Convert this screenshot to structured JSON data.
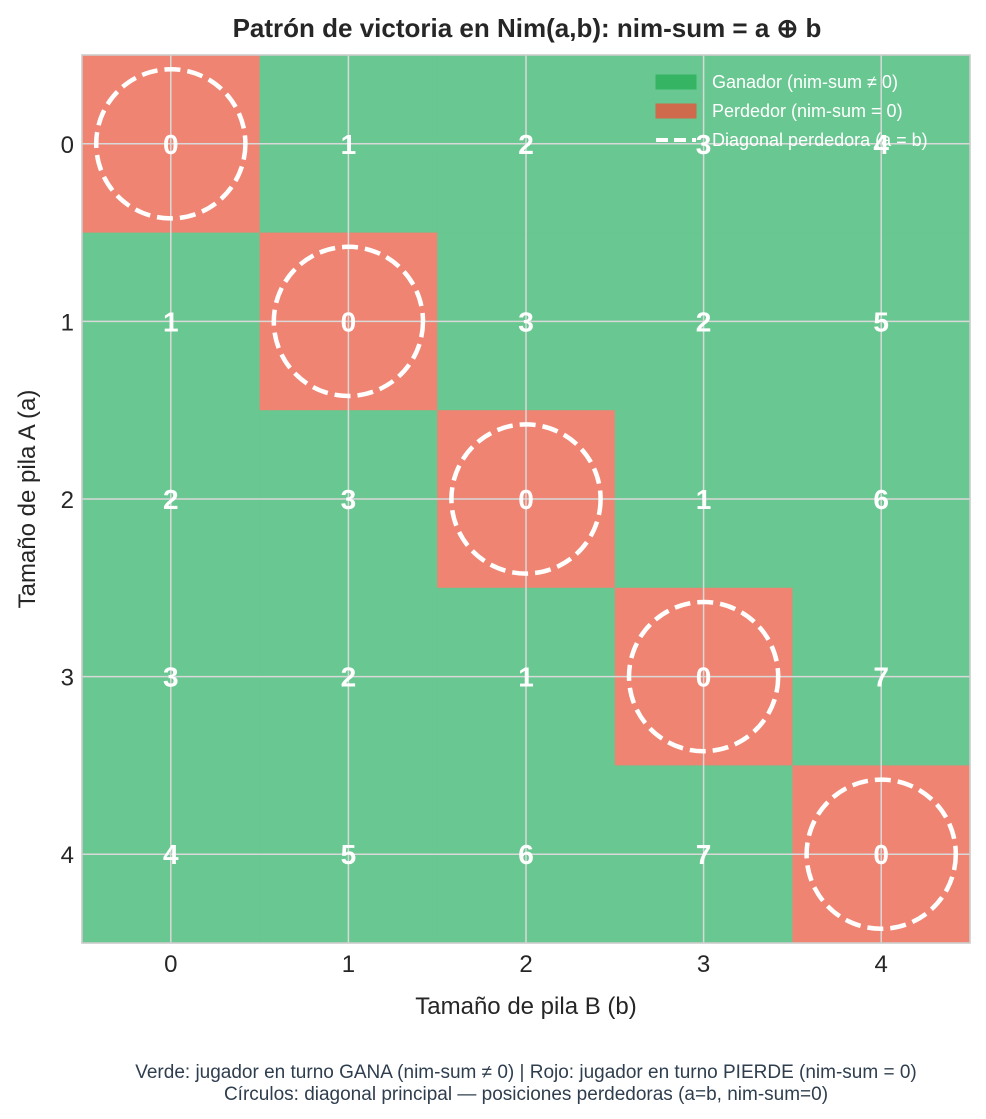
{
  "chart_data": {
    "type": "heatmap",
    "title": "Patrón de victoria en Nim(a,b): nim-sum = a ⊕ b",
    "xlabel": "Tamaño de pila B (b)",
    "ylabel": "Tamaño de pila A (a)",
    "x_ticks": [
      "0",
      "1",
      "2",
      "3",
      "4"
    ],
    "y_ticks": [
      "0",
      "1",
      "2",
      "3",
      "4"
    ],
    "values": [
      [
        0,
        1,
        2,
        3,
        4
      ],
      [
        1,
        0,
        3,
        2,
        5
      ],
      [
        2,
        3,
        0,
        1,
        6
      ],
      [
        3,
        2,
        1,
        0,
        7
      ],
      [
        4,
        5,
        6,
        7,
        0
      ]
    ],
    "grid": true,
    "legend_position": "top-right",
    "legend": [
      {
        "label": "Ganador (nim-sum ≠ 0)",
        "kind": "patch",
        "color": "#35b564"
      },
      {
        "label": "Perdedor (nim-sum = 0)",
        "kind": "patch",
        "color": "#cf6a4c"
      },
      {
        "label": "Diagonal perdedora (a = b)",
        "kind": "dashed-line",
        "color": "#ffffff"
      }
    ],
    "colors": {
      "win": "#69c791",
      "lose": "#ef8472",
      "circle": "#ffffff",
      "grid": "#d9d9d9",
      "frame": "#cccccc"
    },
    "captions": [
      "Verde: jugador en turno GANA (nim-sum ≠ 0)  |  Rojo: jugador en turno PIERDE (nim-sum = 0)",
      "Círculos: diagonal principal — posiciones perdedoras (a=b, nim-sum=0)"
    ]
  }
}
